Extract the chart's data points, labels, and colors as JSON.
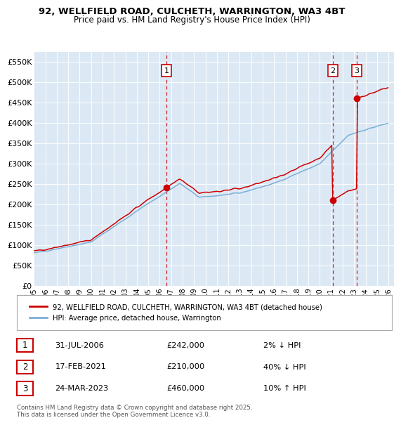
{
  "title_line1": "92, WELLFIELD ROAD, CULCHETH, WARRINGTON, WA3 4BT",
  "title_line2": "Price paid vs. HM Land Registry's House Price Index (HPI)",
  "ylim": [
    0,
    575000
  ],
  "yticks": [
    0,
    50000,
    100000,
    150000,
    200000,
    250000,
    300000,
    350000,
    400000,
    450000,
    500000,
    550000
  ],
  "ytick_labels": [
    "£0",
    "£50K",
    "£100K",
    "£150K",
    "£200K",
    "£250K",
    "£300K",
    "£350K",
    "£400K",
    "£450K",
    "£500K",
    "£550K"
  ],
  "xlim_start": 1995.0,
  "xlim_end": 2026.5,
  "plot_bg_color": "#dce9f5",
  "hpi_color": "#7bafd4",
  "price_color": "#cc0000",
  "transactions": [
    {
      "num": 1,
      "date": "31-JUL-2006",
      "price": 242000,
      "pct": "2%",
      "direction": "↓",
      "year": 2006.58
    },
    {
      "num": 2,
      "date": "17-FEB-2021",
      "price": 210000,
      "pct": "40%",
      "direction": "↓",
      "year": 2021.12
    },
    {
      "num": 3,
      "date": "24-MAR-2023",
      "price": 460000,
      "pct": "10%",
      "direction": "↑",
      "year": 2023.23
    }
  ],
  "legend_label_red": "92, WELLFIELD ROAD, CULCHETH, WARRINGTON, WA3 4BT (detached house)",
  "legend_label_blue": "HPI: Average price, detached house, Warrington",
  "footer": "Contains HM Land Registry data © Crown copyright and database right 2025.\nThis data is licensed under the Open Government Licence v3.0."
}
